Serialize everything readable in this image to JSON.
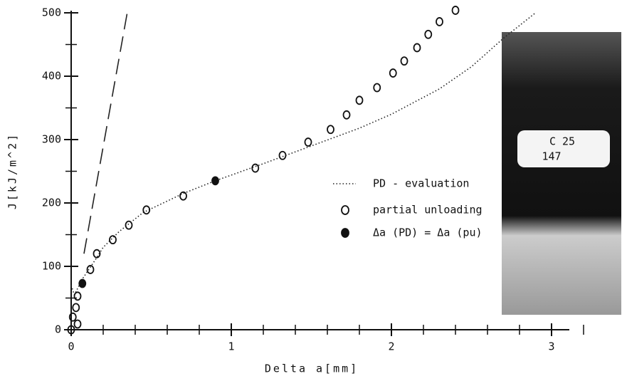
{
  "chart_data": {
    "type": "scatter",
    "xlabel": "Delta a[mm]",
    "ylabel": "J[kJ/m^2]",
    "xlim": [
      0,
      3.2
    ],
    "ylim": [
      0,
      500
    ],
    "xticks": [
      0,
      1,
      2,
      3
    ],
    "yticks": [
      0,
      100,
      200,
      300,
      400,
      500
    ],
    "xminorticks": [
      0.2,
      0.4,
      0.6,
      0.8,
      1.2,
      1.4,
      1.6,
      1.8,
      2.2,
      2.4,
      2.6,
      2.8,
      3.2
    ],
    "yminorticks": [
      50,
      150,
      250,
      350,
      450
    ],
    "annotations": [
      "C 25",
      "147"
    ],
    "series": [
      {
        "name": "PD - evaluation",
        "style": "dotted",
        "color": "#222",
        "x": [
          0.0,
          0.02,
          0.07,
          0.15,
          0.2,
          0.3,
          0.45,
          0.7,
          0.9,
          1.2,
          1.5,
          1.8,
          2.0,
          2.3,
          2.5,
          2.7,
          2.9
        ],
        "values": [
          70,
          55,
          80,
          110,
          130,
          155,
          185,
          215,
          235,
          262,
          290,
          318,
          340,
          380,
          415,
          460,
          500
        ]
      },
      {
        "name": "partial unloading",
        "style": "open",
        "color": "#111",
        "x": [
          0,
          0.01,
          0.03,
          0.04,
          0.04,
          0.12,
          0.16,
          0.26,
          0.36,
          0.47,
          0.7,
          1.15,
          1.32,
          1.48,
          1.62,
          1.72,
          1.8,
          1.91,
          2.01,
          2.08,
          2.16,
          2.23,
          2.3,
          2.4
        ],
        "values": [
          0,
          20,
          35,
          53,
          9,
          95,
          120,
          142,
          165,
          189,
          211,
          255,
          275,
          296,
          316,
          339,
          362,
          382,
          405,
          424,
          445,
          466,
          486,
          504
        ]
      },
      {
        "name": "Δa (PD) = Δa (pu)",
        "style": "filled",
        "color": "#111",
        "x": [
          0.07,
          0.9
        ],
        "values": [
          73,
          235
        ]
      },
      {
        "style": "dashed",
        "color": "#222",
        "x": [
          0.08,
          0.35
        ],
        "values": [
          120,
          500
        ]
      }
    ]
  }
}
